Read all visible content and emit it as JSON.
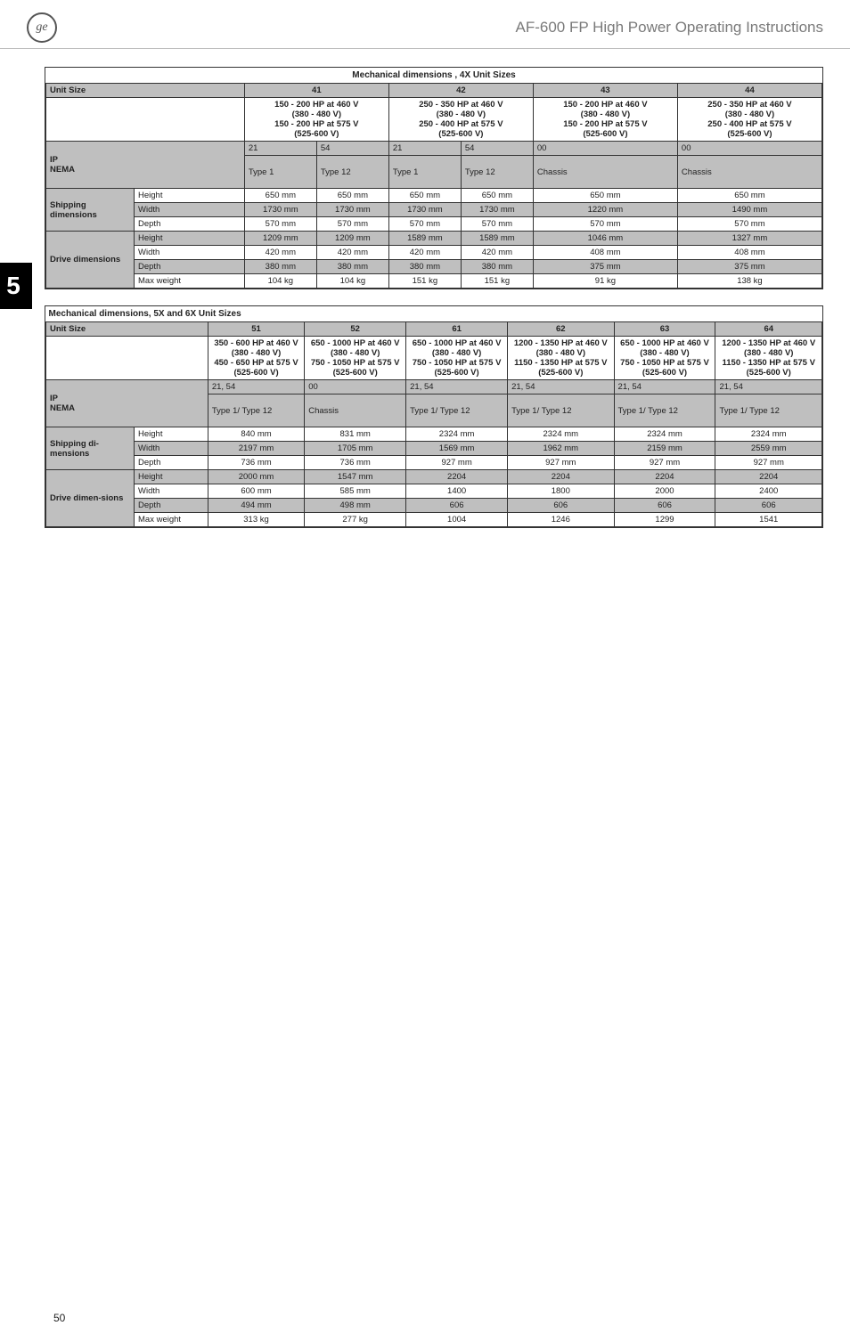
{
  "doc_title": "AF-600 FP High Power Operating Instructions",
  "chapter_num": "5",
  "page_number": "50",
  "table1": {
    "caption": "Mechanical dimensions , 4X Unit Sizes",
    "unit_size_label": "Unit Size",
    "cols": [
      "41",
      "42",
      "43",
      "44"
    ],
    "ratings": [
      "150 - 200 HP at 460 V\n(380 - 480 V)\n150 - 200 HP at 575 V\n(525-600 V)",
      "250 - 350 HP at 460 V\n(380 - 480 V)\n250 - 400 HP at 575 V\n(525-600 V)",
      "150 - 200 HP at 460 V\n(380 - 480 V)\n150 - 200 HP at 575 V\n(525-600 V)",
      "250 - 350 HP at 460 V\n(380 - 480 V)\n250 - 400 HP at 575 V\n(525-600 V)"
    ],
    "ip_label": "IP",
    "nema_label": "NEMA",
    "ip_vals": [
      "21",
      "54",
      "21",
      "54",
      "00",
      "00"
    ],
    "nema_vals": [
      "Type 1",
      "Type 12",
      "Type 1",
      "Type 12",
      "Chassis",
      "Chassis"
    ],
    "ship_label": "Shipping dimensions",
    "ship_rows": [
      {
        "k": "Height",
        "v": [
          "650 mm",
          "650 mm",
          "650 mm",
          "650 mm",
          "650 mm",
          "650 mm"
        ]
      },
      {
        "k": "Width",
        "v": [
          "1730 mm",
          "1730 mm",
          "1730 mm",
          "1730 mm",
          "1220 mm",
          "1490 mm"
        ],
        "gray": true
      },
      {
        "k": "Depth",
        "v": [
          "570 mm",
          "570 mm",
          "570 mm",
          "570 mm",
          "570 mm",
          "570 mm"
        ]
      }
    ],
    "drive_label": "Drive dimensions",
    "drive_rows": [
      {
        "k": "Height",
        "v": [
          "1209 mm",
          "1209 mm",
          "1589 mm",
          "1589 mm",
          "1046 mm",
          "1327 mm"
        ],
        "gray": true
      },
      {
        "k": "Width",
        "v": [
          "420 mm",
          "420 mm",
          "420 mm",
          "420 mm",
          "408 mm",
          "408 mm"
        ]
      },
      {
        "k": "Depth",
        "v": [
          "380 mm",
          "380 mm",
          "380 mm",
          "380 mm",
          "375 mm",
          "375 mm"
        ],
        "gray": true
      },
      {
        "k": "Max weight",
        "v": [
          "104 kg",
          "104 kg",
          "151 kg",
          "151 kg",
          "91 kg",
          "138 kg"
        ]
      }
    ]
  },
  "table2": {
    "caption": "Mechanical dimensions, 5X and 6X Unit Sizes",
    "unit_size_label": "Unit Size",
    "cols": [
      "51",
      "52",
      "61",
      "62",
      "63",
      "64"
    ],
    "ratings": [
      "350 - 600 HP at 460 V\n(380 - 480 V)\n450 - 650 HP at 575 V\n(525-600 V)",
      "650 - 1000 HP at 460 V\n(380 - 480 V)\n750 - 1050 HP at 575 V\n(525-600 V)",
      "650 - 1000 HP at 460 V\n(380 - 480 V)\n750 - 1050 HP at 575 V\n(525-600 V)",
      "1200 - 1350 HP at 460 V\n(380 - 480 V)\n1150 - 1350 HP at 575 V\n(525-600 V)",
      "650 - 1000 HP at 460 V\n(380 - 480 V)\n750 - 1050 HP at 575 V\n(525-600 V)",
      "1200 - 1350 HP at 460 V\n(380 - 480 V)\n1150 - 1350 HP at 575 V\n(525-600 V)"
    ],
    "ip_label": "IP",
    "nema_label": "NEMA",
    "ip_vals": [
      "21, 54",
      "00",
      "21, 54",
      "21, 54",
      "21, 54",
      "21, 54"
    ],
    "nema_vals": [
      "Type 1/ Type 12",
      "Chassis",
      "Type 1/ Type 12",
      "Type 1/ Type 12",
      "Type 1/ Type 12",
      "Type 1/ Type 12"
    ],
    "ship_label": "Shipping di-mensions",
    "ship_rows": [
      {
        "k": "Height",
        "v": [
          "840 mm",
          "831 mm",
          "2324 mm",
          "2324 mm",
          "2324 mm",
          "2324 mm"
        ]
      },
      {
        "k": "Width",
        "v": [
          "2197 mm",
          "1705 mm",
          "1569 mm",
          "1962 mm",
          "2159 mm",
          "2559 mm"
        ],
        "gray": true
      },
      {
        "k": "Depth",
        "v": [
          "736 mm",
          "736 mm",
          "927 mm",
          "927 mm",
          "927 mm",
          "927 mm"
        ]
      }
    ],
    "drive_label": "Drive dimen-sions",
    "drive_rows": [
      {
        "k": "Height",
        "v": [
          "2000 mm",
          "1547 mm",
          "2204",
          "2204",
          "2204",
          "2204"
        ],
        "gray": true
      },
      {
        "k": "Width",
        "v": [
          "600 mm",
          "585 mm",
          "1400",
          "1800",
          "2000",
          "2400"
        ]
      },
      {
        "k": "Depth",
        "v": [
          "494 mm",
          "498 mm",
          "606",
          "606",
          "606",
          "606"
        ],
        "gray": true
      },
      {
        "k": "Max weight",
        "v": [
          "313 kg",
          "277 kg",
          "1004",
          "1246",
          "1299",
          "1541"
        ]
      }
    ]
  }
}
